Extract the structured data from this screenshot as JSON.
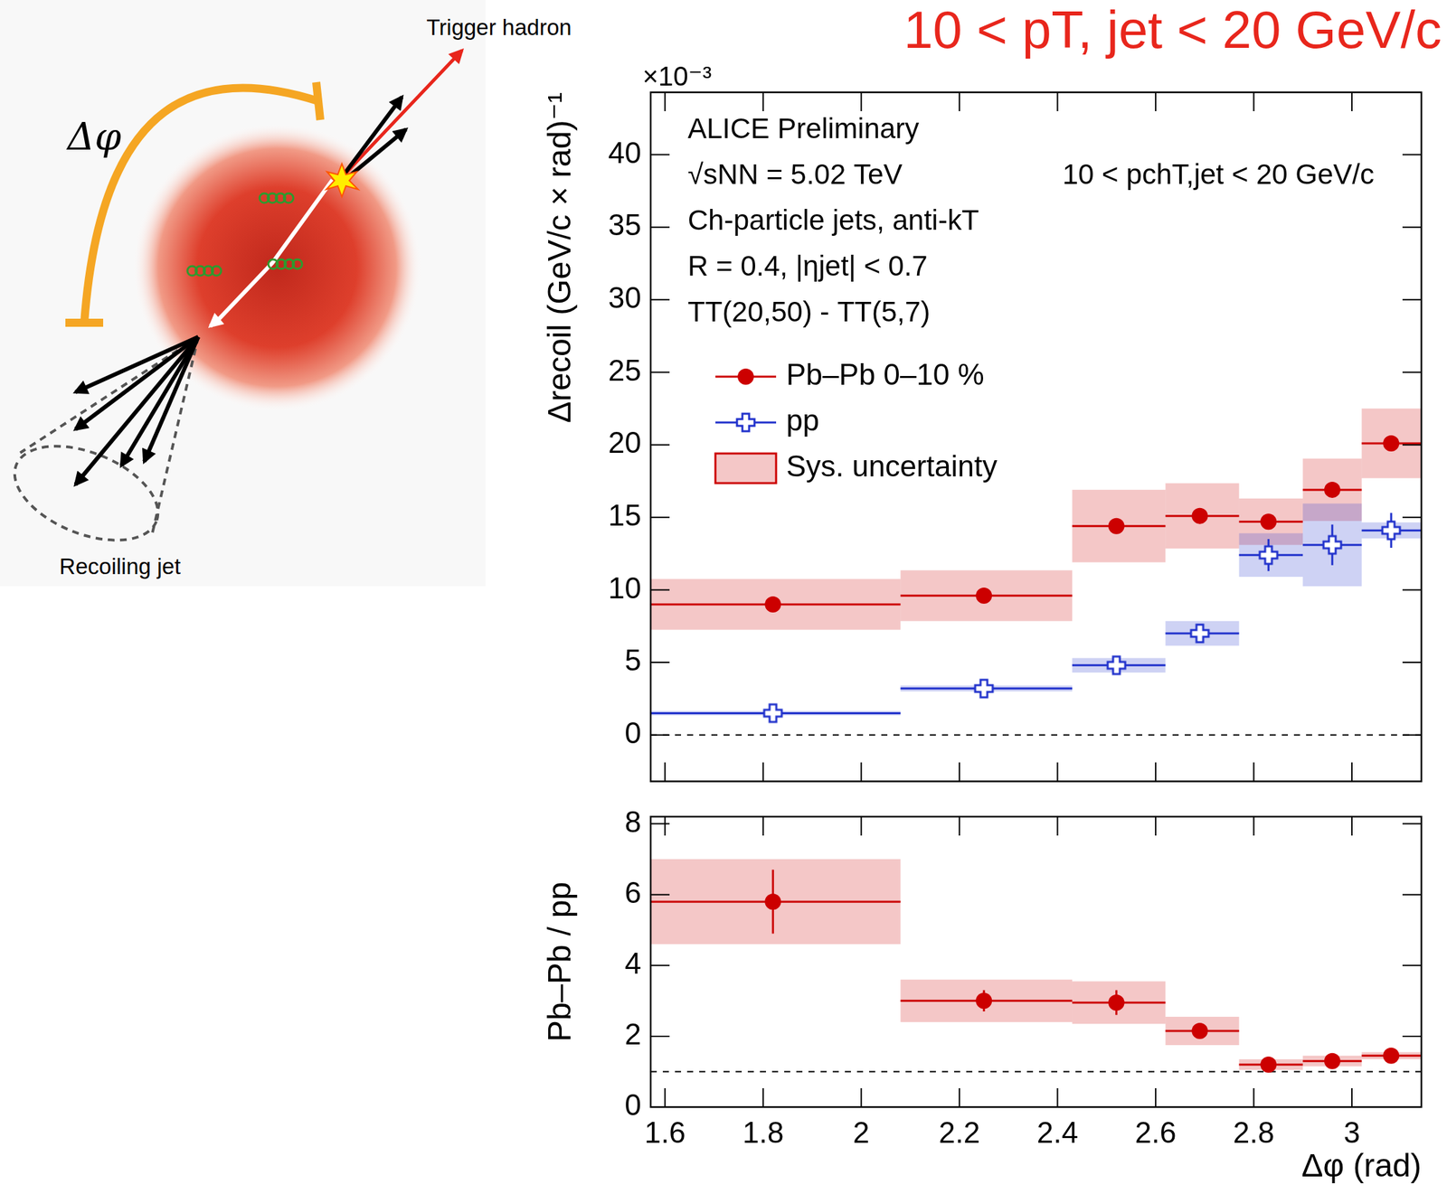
{
  "title": "10 < pT, jet < 20 GeV/c",
  "diagram": {
    "angle_label": "Δφ",
    "trigger_label": "Trigger hadron",
    "jet_label": "Recoiling jet"
  },
  "chart_data": [
    {
      "type": "scatter",
      "y_label": "Δrecoil (GeV/c × rad)⁻¹",
      "y_exponent": "×10⁻³",
      "annotations": [
        "ALICE Preliminary",
        "√sNN = 5.02 TeV",
        "Ch-particle jets, anti-kT",
        "R = 0.4, |ηjet| < 0.7",
        "TT(20,50) - TT(5,7)"
      ],
      "annotation_right": "10 < pchT,jet < 20 GeV/c",
      "sys_label": "Sys. uncertainty",
      "xlim": [
        1.5708,
        3.1416
      ],
      "xticks": [
        1.6,
        1.8,
        2,
        2.2,
        2.4,
        2.6,
        2.8,
        3
      ],
      "ylim": [
        -3.2,
        44.3
      ],
      "yticks": [
        0,
        5,
        10,
        15,
        20,
        25,
        30,
        35,
        40
      ],
      "baseline": 0,
      "grid": false,
      "legend": "upper left",
      "tick_labels": "y",
      "series": [
        {
          "name": "Pb–Pb 0–10 %",
          "color": "#cc0000",
          "marker": "circle",
          "x": [
            1.82,
            2.25,
            2.52,
            2.69,
            2.83,
            2.96,
            3.08
          ],
          "x_low": [
            1.5708,
            2.08,
            2.43,
            2.62,
            2.77,
            2.9,
            3.02
          ],
          "x_high": [
            2.08,
            2.43,
            2.62,
            2.77,
            2.9,
            3.02,
            3.1416
          ],
          "values": [
            9.0,
            9.6,
            14.4,
            15.1,
            14.7,
            16.9,
            20.1
          ],
          "stat_error": [
            0.2,
            0.2,
            0.3,
            0.3,
            0.3,
            0.3,
            0.4
          ],
          "sys_error": [
            1.75,
            1.75,
            2.5,
            2.25,
            1.6,
            2.15,
            2.4
          ]
        },
        {
          "name": "pp",
          "color": "#2233cc",
          "marker": "open_cross",
          "x": [
            1.82,
            2.25,
            2.52,
            2.69,
            2.83,
            2.96,
            3.08
          ],
          "x_low": [
            1.5708,
            2.08,
            2.43,
            2.62,
            2.77,
            2.9,
            3.02
          ],
          "x_high": [
            2.08,
            2.43,
            2.62,
            2.77,
            2.9,
            3.02,
            3.1416
          ],
          "values": [
            1.5,
            3.2,
            4.8,
            7.0,
            12.4,
            13.1,
            14.1
          ],
          "stat_error": [
            0.3,
            0.3,
            0.4,
            0.6,
            1.1,
            1.4,
            1.2
          ],
          "sys_error": [
            0.15,
            0.2,
            0.5,
            0.85,
            1.5,
            2.85,
            0.55
          ]
        }
      ]
    },
    {
      "type": "scatter",
      "x_label": "Δφ (rad)",
      "y_label": "Pb–Pb / pp",
      "xlim": [
        1.5708,
        3.1416
      ],
      "xticks": [
        1.6,
        1.8,
        2,
        2.2,
        2.4,
        2.6,
        2.8,
        3
      ],
      "ylim": [
        0,
        8.2
      ],
      "yticks": [
        0,
        2,
        4,
        6,
        8
      ],
      "baseline": 1,
      "grid": false,
      "series": [
        {
          "color": "#cc0000",
          "marker": "circle",
          "x": [
            1.82,
            2.25,
            2.52,
            2.69,
            2.83,
            2.96,
            3.08
          ],
          "x_low": [
            1.5708,
            2.08,
            2.43,
            2.62,
            2.77,
            2.9,
            3.02
          ],
          "x_high": [
            2.08,
            2.43,
            2.62,
            2.77,
            2.9,
            3.02,
            3.1416
          ],
          "values": [
            5.8,
            3.0,
            2.95,
            2.15,
            1.2,
            1.3,
            1.45
          ],
          "stat_error": [
            0.9,
            0.3,
            0.35,
            0.2,
            0.1,
            0.12,
            0.1
          ],
          "sys_error": [
            1.2,
            0.6,
            0.6,
            0.4,
            0.15,
            0.15,
            0.1
          ]
        }
      ]
    }
  ]
}
